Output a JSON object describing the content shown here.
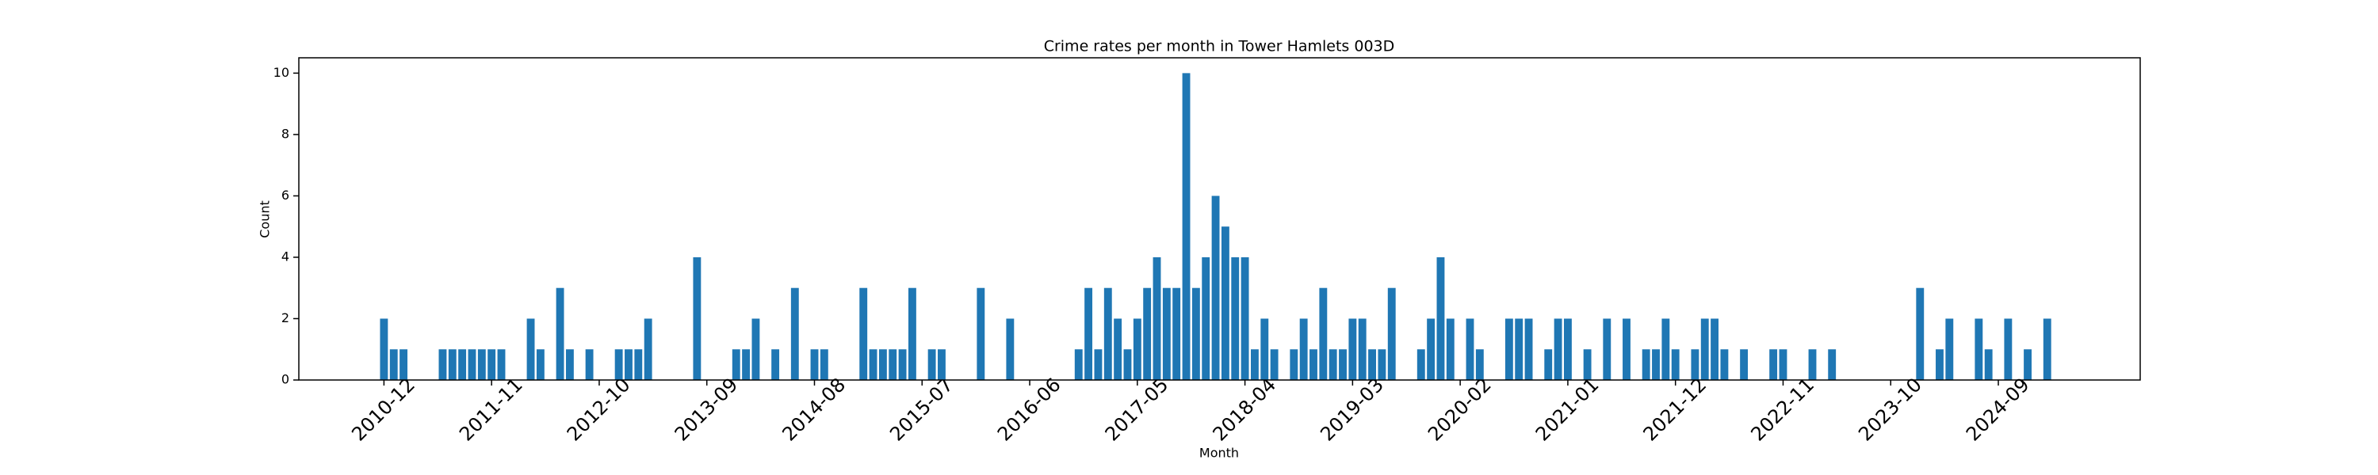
{
  "chart_data": {
    "type": "bar",
    "title": "Crime rates per month in Tower Hamlets 003D",
    "x_label": "Month",
    "y_label": "Count",
    "color": "#1f77b4",
    "categories": [
      "2010-12",
      null,
      null,
      null,
      null,
      null,
      null,
      null,
      null,
      null,
      null,
      "2011-11",
      null,
      null,
      null,
      null,
      null,
      null,
      null,
      null,
      null,
      null,
      "2012-10",
      null,
      null,
      null,
      null,
      null,
      null,
      null,
      null,
      null,
      null,
      "2013-09",
      null,
      null,
      null,
      null,
      null,
      null,
      null,
      null,
      null,
      null,
      "2014-08",
      null,
      null,
      null,
      null,
      null,
      null,
      null,
      null,
      null,
      null,
      "2015-07",
      null,
      null,
      null,
      null,
      null,
      null,
      null,
      null,
      null,
      null,
      "2016-06",
      null,
      null,
      null,
      null,
      null,
      null,
      null,
      null,
      null,
      null,
      "2017-05",
      null,
      null,
      null,
      null,
      null,
      null,
      null,
      null,
      null,
      null,
      "2018-04",
      null,
      null,
      null,
      null,
      null,
      null,
      null,
      null,
      null,
      null,
      "2019-03",
      null,
      null,
      null,
      null,
      null,
      null,
      null,
      null,
      null,
      null,
      "2020-02",
      null,
      null,
      null,
      null,
      null,
      null,
      null,
      null,
      null,
      null,
      "2021-01",
      null,
      null,
      null,
      null,
      null,
      null,
      null,
      null,
      null,
      null,
      "2021-12",
      null,
      null,
      null,
      null,
      null,
      null,
      null,
      null,
      null,
      null,
      "2022-11",
      null,
      null,
      null,
      null,
      null,
      null,
      null,
      null,
      null,
      null,
      "2023-10",
      null,
      null,
      null,
      null,
      null,
      null,
      null,
      null,
      null,
      null,
      "2024-09",
      null,
      null,
      null,
      null,
      null
    ],
    "values": [
      2,
      1,
      1,
      0,
      0,
      0,
      1,
      1,
      1,
      1,
      1,
      1,
      1,
      0,
      0,
      2,
      1,
      0,
      3,
      1,
      0,
      1,
      0,
      0,
      1,
      1,
      1,
      2,
      0,
      0,
      0,
      0,
      4,
      0,
      0,
      0,
      1,
      1,
      2,
      0,
      1,
      0,
      3,
      0,
      1,
      1,
      0,
      0,
      0,
      3,
      1,
      1,
      1,
      1,
      3,
      0,
      1,
      1,
      0,
      0,
      0,
      3,
      0,
      0,
      2,
      0,
      0,
      0,
      0,
      0,
      0,
      1,
      3,
      1,
      3,
      2,
      1,
      2,
      3,
      4,
      3,
      3,
      10,
      3,
      4,
      6,
      5,
      4,
      4,
      1,
      2,
      1,
      0,
      1,
      2,
      1,
      3,
      1,
      1,
      2,
      2,
      1,
      1,
      3,
      0,
      0,
      1,
      2,
      4,
      2,
      0,
      2,
      1,
      0,
      0,
      2,
      2,
      2,
      0,
      1,
      2,
      2,
      0,
      1,
      0,
      2,
      0,
      2,
      0,
      1,
      1,
      2,
      1,
      0,
      1,
      2,
      2,
      1,
      0,
      1,
      0,
      0,
      1,
      1,
      0,
      0,
      1,
      0,
      1,
      0,
      0,
      0,
      0,
      0,
      0,
      0,
      0,
      3,
      0,
      1,
      2,
      0,
      0,
      2,
      1,
      0,
      2,
      0,
      1,
      0,
      2
    ],
    "ylim": [
      0,
      10.5
    ],
    "yticks": [
      0,
      2,
      4,
      6,
      8,
      10
    ],
    "grid": false
  }
}
